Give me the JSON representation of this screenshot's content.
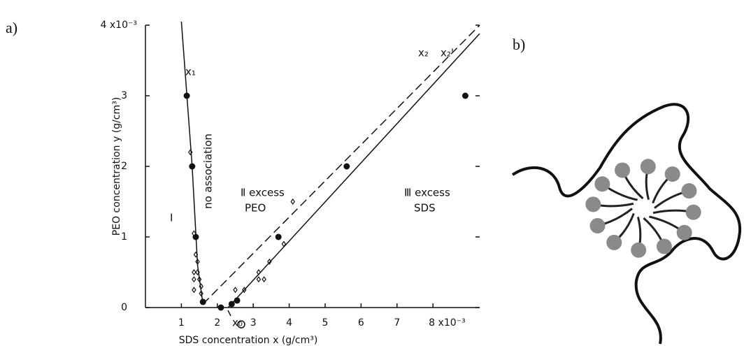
{
  "panel_labels": [
    "a)",
    "b)"
  ],
  "chart_data": {
    "type": "scatter",
    "x_label": "SDS concentration x (g/cm³)",
    "y_label": "PEO concentration y (g/cm³)",
    "xlim": [
      0,
      9.3
    ],
    "ylim": [
      0,
      4
    ],
    "xticks": [
      1,
      2,
      3,
      4,
      5,
      6,
      7,
      {
        "value": 8,
        "label": "8 x10⁻³"
      }
    ],
    "yticks": [
      0,
      1,
      2,
      3,
      {
        "value": 4,
        "label": "4 x10⁻³"
      }
    ],
    "annotations": [
      "x₁",
      "x₂",
      "x₂'",
      "x₀",
      "I",
      "no association",
      "Ⅱ excess",
      "PEO",
      "Ⅲ excess",
      "SDS"
    ],
    "series": [
      {
        "marker": "filled-circle",
        "color": "#111111",
        "x": [
          1.15,
          1.3,
          1.4,
          1.6,
          2.1,
          2.4,
          2.55,
          3.7,
          5.6,
          8.9
        ],
        "values": [
          3.0,
          2.0,
          1.0,
          0.08,
          0.0,
          0.05,
          0.1,
          1.0,
          2.0,
          3.0
        ]
      },
      {
        "marker": "open-diamond",
        "color": "#111111",
        "x": [
          1.25,
          1.35,
          1.4,
          1.45,
          1.35,
          1.45,
          1.35,
          1.5,
          1.55,
          1.35,
          1.55,
          2.5,
          2.75,
          3.15,
          3.15,
          3.3,
          3.45,
          3.85,
          4.1
        ],
        "values": [
          2.2,
          1.05,
          0.75,
          0.65,
          0.5,
          0.5,
          0.4,
          0.4,
          0.3,
          0.25,
          0.2,
          0.25,
          0.25,
          0.5,
          0.4,
          0.4,
          0.65,
          0.9,
          1.5
        ]
      },
      {
        "line": "solid",
        "color": "#111111",
        "x": [
          1.0,
          1.3,
          1.45,
          1.6
        ],
        "values": [
          4.05,
          2.0,
          0.6,
          0.05
        ]
      },
      {
        "line": "dashed",
        "color": "#111111",
        "x": [
          1.6,
          9.3
        ],
        "values": [
          0.05,
          4.0
        ]
      },
      {
        "line": "solid",
        "color": "#111111",
        "x": [
          2.3,
          9.3
        ],
        "values": [
          0.0,
          3.88
        ]
      }
    ]
  }
}
